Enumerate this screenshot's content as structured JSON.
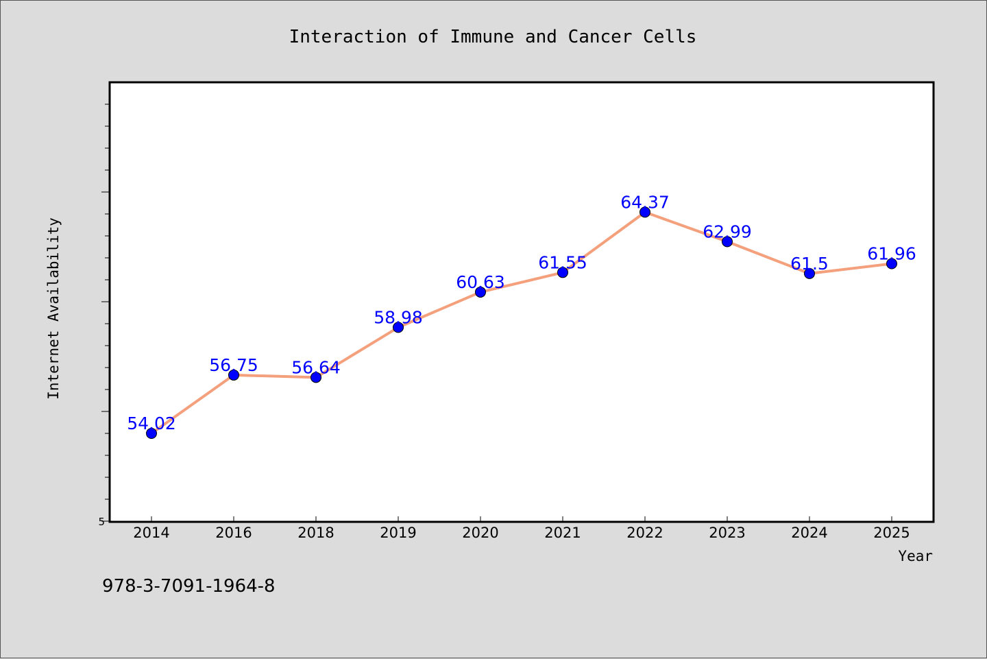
{
  "chart_data": {
    "type": "line",
    "title": "Interaction of Immune and Cancer Cells",
    "xlabel": "Year",
    "ylabel": "Internet Availability",
    "categories": [
      "2014",
      "2016",
      "2018",
      "2019",
      "2020",
      "2021",
      "2022",
      "2023",
      "2024",
      "2025"
    ],
    "values": [
      54.02,
      56.75,
      56.64,
      58.98,
      60.63,
      61.55,
      64.37,
      62.99,
      61.5,
      61.96
    ],
    "labels": [
      "54.02",
      "56.75",
      "56.64",
      "58.98",
      "60.63",
      "61.55",
      "64.37",
      "62.99",
      "61.5",
      "61.96"
    ],
    "y_tick_labels": [
      "5"
    ],
    "ylim": [
      50,
      70
    ],
    "grid": false,
    "colors": {
      "line": "#f4a07c",
      "marker": "#0000ff",
      "data_label": "#0000ff"
    }
  },
  "footnote": "978-3-7091-1964-8"
}
